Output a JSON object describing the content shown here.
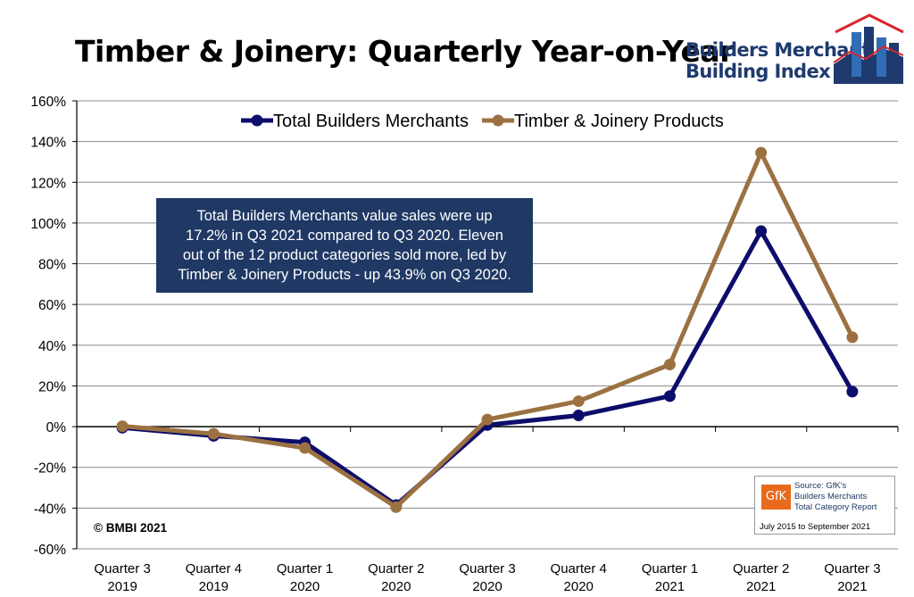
{
  "title": "Timber & Joinery: Quarterly Year-on-Year",
  "logo": {
    "line1": "Builders Merchant",
    "line2": "Building Index",
    "icon": "house-bar-chart-logo"
  },
  "annotation": {
    "line1": "Total Builders Merchants value sales were up",
    "line2": "17.2% in Q3 2021 compared to Q3 2020. Eleven",
    "line3": "out of the 12 product categories sold more, led by",
    "line4": "Timber & Joinery Products - up 43.9% on Q3 2020."
  },
  "copyright": "© BMBI 2021",
  "source": {
    "logo_text": "GfK",
    "line1": "Source: GfK's",
    "line2": "Builders Merchants",
    "line3": "Total Category Report",
    "period": "July 2015 to September 2021"
  },
  "colors": {
    "total": "#0d0d6b",
    "timber": "#9c7142",
    "grid": "#8c8c8c",
    "axis": "#000000"
  },
  "chart_data": {
    "type": "line",
    "categories": [
      [
        "Quarter 3",
        "2019"
      ],
      [
        "Quarter 4",
        "2019"
      ],
      [
        "Quarter 1",
        "2020"
      ],
      [
        "Quarter 2",
        "2020"
      ],
      [
        "Quarter 3",
        "2020"
      ],
      [
        "Quarter 4",
        "2020"
      ],
      [
        "Quarter 1",
        "2021"
      ],
      [
        "Quarter 2",
        "2021"
      ],
      [
        "Quarter 3",
        "2021"
      ]
    ],
    "series": [
      {
        "name": "Total Builders Merchants",
        "color": "#0d0d6b",
        "values": [
          -0.5,
          -4.5,
          -7.7,
          -38.5,
          0.8,
          5.5,
          15.0,
          96.0,
          17.2
        ]
      },
      {
        "name": "Timber & Joinery Products",
        "color": "#9c7142",
        "values": [
          0.2,
          -3.5,
          -10.5,
          -39.5,
          3.5,
          12.5,
          30.5,
          134.5,
          43.9
        ]
      }
    ],
    "ylim": [
      -60,
      160
    ],
    "yticks": [
      -60,
      -40,
      -20,
      0,
      20,
      40,
      60,
      80,
      100,
      120,
      140,
      160
    ],
    "ytick_labels": [
      "-60%",
      "-40%",
      "-20%",
      "0%",
      "20%",
      "40%",
      "60%",
      "80%",
      "100%",
      "120%",
      "140%",
      "160%"
    ],
    "grid": true,
    "legend_position": "top"
  }
}
